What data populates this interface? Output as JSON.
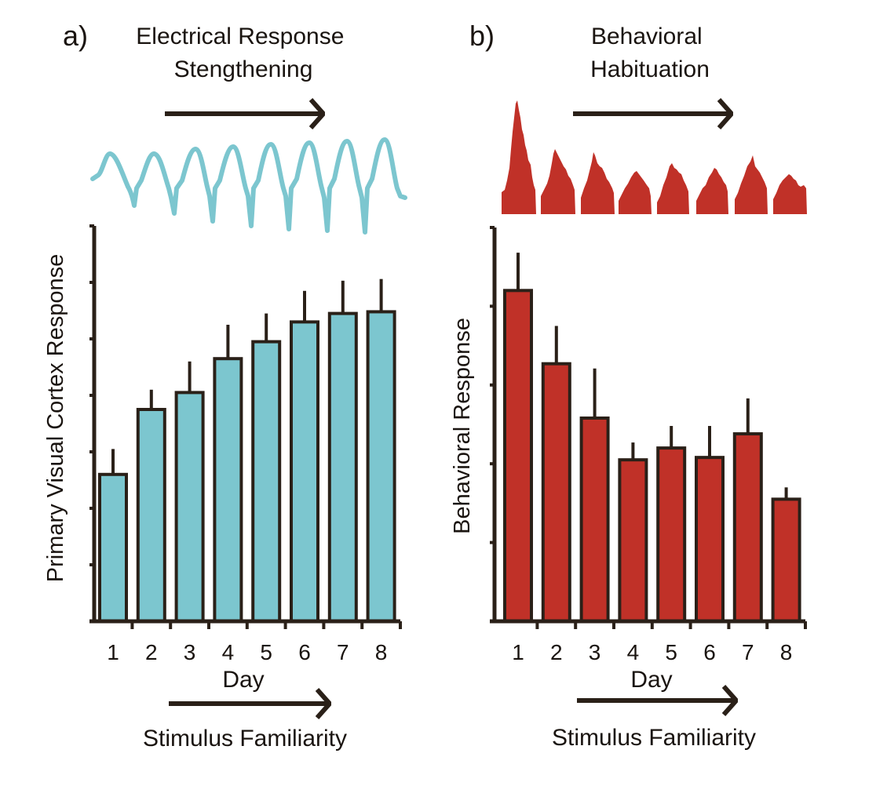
{
  "figure_description": "Two-panel bar chart figure: primary visual cortex response increases over 8 days while behavioral response habituates.",
  "colors": {
    "teal": "#7cc6cf",
    "red": "#c03128",
    "stroke": "#2a2018",
    "text": "#1a1410"
  },
  "chart_data": [
    {
      "type": "bar",
      "panel_label": "a)",
      "title": "Electrical Response\nStengthening",
      "xlabel": "Day",
      "ylabel": "Primary Visual Cortex Response",
      "bottom_label": "Stimulus Familiarity",
      "categories": [
        "1",
        "2",
        "3",
        "4",
        "5",
        "6",
        "7",
        "8"
      ],
      "values": [
        2.6,
        3.75,
        4.05,
        4.65,
        4.95,
        5.3,
        5.45,
        5.48
      ],
      "errors": [
        0.45,
        0.35,
        0.55,
        0.6,
        0.5,
        0.55,
        0.58,
        0.58
      ],
      "ylim": [
        0,
        7
      ],
      "ytick_count": 8,
      "show_ytick_labels": false,
      "grid": false,
      "color": "#7cc6cf"
    },
    {
      "type": "bar",
      "panel_label": "b)",
      "title": "Behavioral\nHabituation",
      "xlabel": "Day",
      "ylabel": "Behavioral Response",
      "bottom_label": "Stimulus Familiarity",
      "categories": [
        "1",
        "2",
        "3",
        "4",
        "5",
        "6",
        "7",
        "8"
      ],
      "values": [
        4.2,
        3.27,
        2.58,
        2.05,
        2.2,
        2.08,
        2.38,
        1.55
      ],
      "errors": [
        0.48,
        0.48,
        0.63,
        0.22,
        0.28,
        0.4,
        0.45,
        0.15
      ],
      "ylim": [
        0,
        5
      ],
      "ytick_count": 6,
      "show_ytick_labels": false,
      "grid": false,
      "color": "#c03128"
    }
  ]
}
